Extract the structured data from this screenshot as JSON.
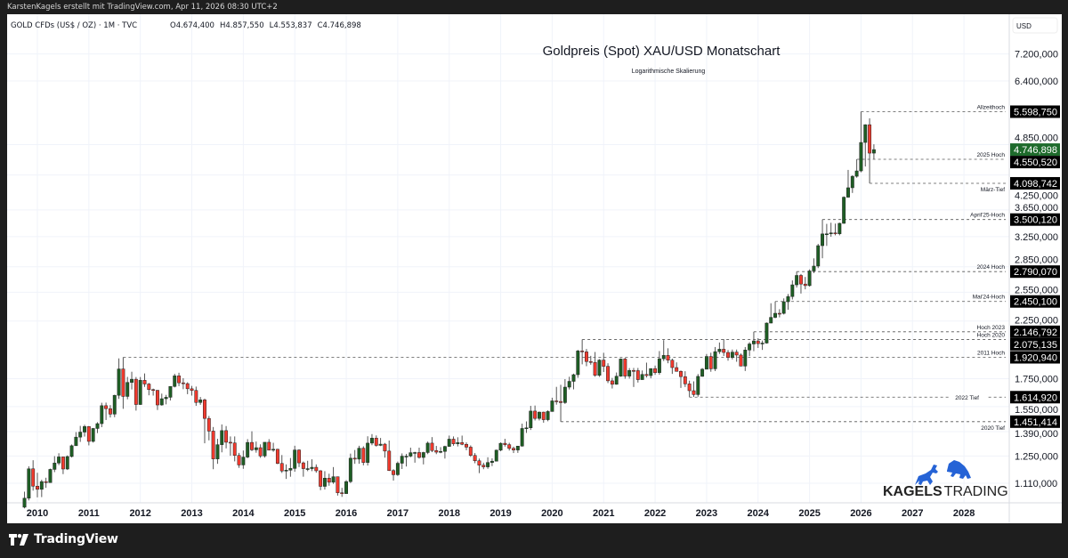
{
  "header": {
    "attribution": "KarstenKagels erstellt mit TradingView.com, Apr 11, 2026 08:30 UTC+2",
    "symbol_line": "GOLD CFDs (US$ / OZ) · 1M · TVC",
    "ohlc_readout": {
      "open": "O4.674,400",
      "high": "H4.857,550",
      "low": "L4.553,837",
      "close": "C4.746,898"
    }
  },
  "footer": {
    "brand": "TradingView",
    "icon": "tradingview-logo-icon"
  },
  "watermark": {
    "text_bold": "KAGELS",
    "text_light": "TRADING",
    "icons": [
      "bull-icon",
      "bear-icon"
    ],
    "color": "#2563d6"
  },
  "colors": {
    "up": "#1e5e24",
    "down": "#f23a2e",
    "last_price_badge": "#1e6b2c",
    "level_badge": "#000000"
  },
  "chart_data": {
    "type": "candlestick",
    "title": "Goldpreis (Spot) XAU/USD Monatschart",
    "subtitle": "Logarithmische Skalierung",
    "y_unit": "USD",
    "y_scale": "log",
    "grid": true,
    "interval": "1M",
    "x_ticks": [
      "2010",
      "2011",
      "2012",
      "2013",
      "2014",
      "2015",
      "2016",
      "2017",
      "2018",
      "2019",
      "2020",
      "2021",
      "2022",
      "2023",
      "2024",
      "2025",
      "2026",
      "2027",
      "2028"
    ],
    "y_ticks": [
      7200,
      6400,
      4850,
      4250,
      3650,
      3250,
      2850,
      2550,
      2250,
      1750,
      1550,
      1390,
      1250,
      1110
    ],
    "candles_start": "2009-10",
    "ohlc": [
      [
        1000,
        1070,
        995,
        1040
      ],
      [
        1040,
        1195,
        1030,
        1182
      ],
      [
        1182,
        1227,
        1075,
        1096
      ],
      [
        1096,
        1162,
        1044,
        1081
      ],
      [
        1081,
        1127,
        1045,
        1118
      ],
      [
        1118,
        1137,
        1088,
        1113
      ],
      [
        1113,
        1183,
        1114,
        1179
      ],
      [
        1179,
        1249,
        1165,
        1212
      ],
      [
        1212,
        1265,
        1201,
        1245
      ],
      [
        1245,
        1246,
        1155,
        1181
      ],
      [
        1181,
        1253,
        1176,
        1247
      ],
      [
        1247,
        1314,
        1242,
        1307
      ],
      [
        1307,
        1387,
        1315,
        1357
      ],
      [
        1357,
        1425,
        1329,
        1387
      ],
      [
        1387,
        1432,
        1360,
        1421
      ],
      [
        1421,
        1424,
        1309,
        1332
      ],
      [
        1332,
        1412,
        1325,
        1409
      ],
      [
        1409,
        1448,
        1381,
        1439
      ],
      [
        1439,
        1576,
        1417,
        1556
      ],
      [
        1556,
        1577,
        1462,
        1536
      ],
      [
        1536,
        1560,
        1478,
        1500
      ],
      [
        1500,
        1632,
        1480,
        1628
      ],
      [
        1628,
        1912,
        1603,
        1826
      ],
      [
        1826,
        1920.94,
        1535,
        1620
      ],
      [
        1620,
        1764,
        1600,
        1722
      ],
      [
        1722,
        1804,
        1670,
        1746
      ],
      [
        1746,
        1763,
        1523,
        1564
      ],
      [
        1564,
        1763,
        1562,
        1738
      ],
      [
        1738,
        1791,
        1689,
        1710
      ],
      [
        1710,
        1718,
        1628,
        1669
      ],
      [
        1669,
        1676,
        1626,
        1664
      ],
      [
        1664,
        1666,
        1527,
        1561
      ],
      [
        1561,
        1640,
        1556,
        1604
      ],
      [
        1604,
        1631,
        1565,
        1614
      ],
      [
        1614,
        1691,
        1592,
        1692
      ],
      [
        1692,
        1788,
        1685,
        1772
      ],
      [
        1772,
        1796,
        1694,
        1719
      ],
      [
        1719,
        1754,
        1672,
        1713
      ],
      [
        1713,
        1723,
        1636,
        1675
      ],
      [
        1675,
        1696,
        1626,
        1663
      ],
      [
        1663,
        1691,
        1555,
        1578
      ],
      [
        1578,
        1616,
        1562,
        1596
      ],
      [
        1596,
        1605,
        1321,
        1472
      ],
      [
        1472,
        1488,
        1338,
        1393
      ],
      [
        1393,
        1418,
        1180,
        1234
      ],
      [
        1234,
        1347,
        1208,
        1313
      ],
      [
        1313,
        1434,
        1270,
        1396
      ],
      [
        1396,
        1424,
        1292,
        1327
      ],
      [
        1327,
        1361,
        1251,
        1323
      ],
      [
        1323,
        1361,
        1221,
        1253
      ],
      [
        1253,
        1267,
        1187,
        1202
      ],
      [
        1202,
        1280,
        1182,
        1244
      ],
      [
        1244,
        1345,
        1238,
        1326
      ],
      [
        1326,
        1392,
        1277,
        1284
      ],
      [
        1284,
        1331,
        1268,
        1296
      ],
      [
        1296,
        1315,
        1240,
        1250
      ],
      [
        1250,
        1325,
        1241,
        1327
      ],
      [
        1327,
        1345,
        1281,
        1282
      ],
      [
        1282,
        1324,
        1273,
        1287
      ],
      [
        1287,
        1290,
        1206,
        1210
      ],
      [
        1210,
        1255,
        1161,
        1171
      ],
      [
        1171,
        1205,
        1131,
        1175
      ],
      [
        1175,
        1239,
        1142,
        1184
      ],
      [
        1184,
        1307,
        1167,
        1283
      ],
      [
        1283,
        1287,
        1191,
        1213
      ],
      [
        1213,
        1220,
        1142,
        1183
      ],
      [
        1183,
        1224,
        1170,
        1183
      ],
      [
        1183,
        1232,
        1170,
        1190
      ],
      [
        1190,
        1205,
        1162,
        1172
      ],
      [
        1172,
        1175,
        1077,
        1095
      ],
      [
        1095,
        1170,
        1080,
        1135
      ],
      [
        1135,
        1157,
        1098,
        1115
      ],
      [
        1115,
        1191,
        1107,
        1142
      ],
      [
        1142,
        1142,
        1052,
        1065
      ],
      [
        1065,
        1088,
        1046,
        1061
      ],
      [
        1061,
        1125,
        1061,
        1118
      ],
      [
        1118,
        1263,
        1111,
        1238
      ],
      [
        1238,
        1283,
        1208,
        1233
      ],
      [
        1233,
        1307,
        1208,
        1293
      ],
      [
        1293,
        1304,
        1200,
        1215
      ],
      [
        1215,
        1362,
        1199,
        1322
      ],
      [
        1322,
        1375,
        1310,
        1351
      ],
      [
        1351,
        1367,
        1302,
        1309
      ],
      [
        1309,
        1352,
        1305,
        1316
      ],
      [
        1316,
        1323,
        1241,
        1277
      ],
      [
        1277,
        1337,
        1171,
        1173
      ],
      [
        1173,
        1180,
        1123,
        1152
      ],
      [
        1152,
        1220,
        1146,
        1211
      ],
      [
        1211,
        1264,
        1181,
        1249
      ],
      [
        1249,
        1261,
        1194,
        1249
      ],
      [
        1249,
        1296,
        1243,
        1268
      ],
      [
        1268,
        1273,
        1214,
        1269
      ],
      [
        1269,
        1296,
        1236,
        1242
      ],
      [
        1242,
        1273,
        1205,
        1269
      ],
      [
        1269,
        1331,
        1260,
        1322
      ],
      [
        1322,
        1357,
        1271,
        1280
      ],
      [
        1280,
        1306,
        1260,
        1271
      ],
      [
        1271,
        1299,
        1265,
        1275
      ],
      [
        1275,
        1307,
        1236,
        1303
      ],
      [
        1303,
        1366,
        1302,
        1345
      ],
      [
        1345,
        1361,
        1307,
        1318
      ],
      [
        1318,
        1356,
        1303,
        1325
      ],
      [
        1325,
        1366,
        1310,
        1315
      ],
      [
        1315,
        1326,
        1282,
        1299
      ],
      [
        1299,
        1309,
        1245,
        1253
      ],
      [
        1253,
        1266,
        1211,
        1224
      ],
      [
        1224,
        1236,
        1160,
        1201
      ],
      [
        1201,
        1214,
        1180,
        1192
      ],
      [
        1192,
        1243,
        1182,
        1215
      ],
      [
        1215,
        1237,
        1196,
        1222
      ],
      [
        1222,
        1285,
        1221,
        1282
      ],
      [
        1282,
        1326,
        1276,
        1321
      ],
      [
        1321,
        1347,
        1302,
        1313
      ],
      [
        1313,
        1324,
        1280,
        1292
      ],
      [
        1292,
        1302,
        1266,
        1283
      ],
      [
        1283,
        1306,
        1267,
        1305
      ],
      [
        1305,
        1439,
        1302,
        1409
      ],
      [
        1409,
        1453,
        1382,
        1413
      ],
      [
        1413,
        1555,
        1400,
        1520
      ],
      [
        1520,
        1557,
        1459,
        1472
      ],
      [
        1472,
        1517,
        1459,
        1513
      ],
      [
        1513,
        1516,
        1445,
        1464
      ],
      [
        1464,
        1525,
        1454,
        1517
      ],
      [
        1517,
        1611,
        1517,
        1589
      ],
      [
        1589,
        1689,
        1563,
        1585
      ],
      [
        1585,
        1704,
        1451.414,
        1577
      ],
      [
        1577,
        1747,
        1568,
        1687
      ],
      [
        1687,
        1765,
        1670,
        1730
      ],
      [
        1730,
        1789,
        1671,
        1781
      ],
      [
        1781,
        1984,
        1757,
        1975
      ],
      [
        1975,
        2075.135,
        1863,
        1967
      ],
      [
        1967,
        1992,
        1848,
        1886
      ],
      [
        1886,
        1933,
        1860,
        1879
      ],
      [
        1879,
        1966,
        1765,
        1776
      ],
      [
        1776,
        1906,
        1764,
        1898
      ],
      [
        1898,
        1959,
        1802,
        1847
      ],
      [
        1847,
        1872,
        1717,
        1734
      ],
      [
        1734,
        1756,
        1677,
        1708
      ],
      [
        1708,
        1798,
        1705,
        1769
      ],
      [
        1769,
        1912,
        1765,
        1907
      ],
      [
        1907,
        1917,
        1750,
        1770
      ],
      [
        1770,
        1833,
        1751,
        1814
      ],
      [
        1814,
        1834,
        1688,
        1813
      ],
      [
        1813,
        1834,
        1721,
        1743
      ],
      [
        1743,
        1814,
        1746,
        1783
      ],
      [
        1783,
        1877,
        1759,
        1774
      ],
      [
        1774,
        1831,
        1753,
        1829
      ],
      [
        1829,
        1853,
        1780,
        1797
      ],
      [
        1797,
        1974,
        1781,
        1909
      ],
      [
        1909,
        2070,
        1890,
        1937
      ],
      [
        1937,
        1998,
        1872,
        1897
      ],
      [
        1897,
        1910,
        1787,
        1837
      ],
      [
        1837,
        1879,
        1805,
        1807
      ],
      [
        1807,
        1814,
        1681,
        1766
      ],
      [
        1766,
        1808,
        1688,
        1711
      ],
      [
        1711,
        1735,
        1614.92,
        1661
      ],
      [
        1661,
        1730,
        1617,
        1633
      ],
      [
        1633,
        1786,
        1618,
        1768
      ],
      [
        1768,
        1833,
        1765,
        1824
      ],
      [
        1824,
        1949,
        1823,
        1928
      ],
      [
        1928,
        1960,
        1804,
        1827
      ],
      [
        1827,
        2009,
        1809,
        1969
      ],
      [
        1969,
        2049,
        1949,
        1990
      ],
      [
        1990,
        2079,
        1932,
        1962
      ],
      [
        1962,
        1983,
        1893,
        1919
      ],
      [
        1919,
        1987,
        1903,
        1965
      ],
      [
        1965,
        1987,
        1884,
        1940
      ],
      [
        1940,
        1953,
        1847,
        1849
      ],
      [
        1849,
        2009,
        1810,
        1983
      ],
      [
        1983,
        2052,
        1931,
        2036
      ],
      [
        2036,
        2146.792,
        1973,
        2063
      ],
      [
        2063,
        2088,
        2001,
        2039
      ],
      [
        2039,
        2066,
        1984,
        2044
      ],
      [
        2044,
        2236,
        2039,
        2230
      ],
      [
        2230,
        2431,
        2228,
        2286
      ],
      [
        2286,
        2450.1,
        2277,
        2327
      ],
      [
        2327,
        2369,
        2286,
        2326
      ],
      [
        2326,
        2483,
        2315,
        2447
      ],
      [
        2447,
        2531,
        2364,
        2503
      ],
      [
        2503,
        2685,
        2471,
        2634
      ],
      [
        2634,
        2790.07,
        2603,
        2744
      ],
      [
        2744,
        2761,
        2536,
        2643
      ],
      [
        2643,
        2726,
        2583,
        2625
      ],
      [
        2625,
        2817,
        2614,
        2798
      ],
      [
        2798,
        2956,
        2772,
        2858
      ],
      [
        2858,
        3148,
        2833,
        3124
      ],
      [
        3124,
        3500.12,
        2957,
        3288
      ],
      [
        3288,
        3435,
        3121,
        3289
      ],
      [
        3289,
        3452,
        3247,
        3303
      ],
      [
        3303,
        3439,
        3268,
        3290
      ],
      [
        3290,
        3453,
        3268,
        3443
      ],
      [
        3443,
        3872,
        3436,
        3858
      ],
      [
        3858,
        4345,
        3850,
        4020
      ],
      [
        4020,
        4245,
        3930,
        4226
      ],
      [
        4226,
        4550.52,
        4200,
        4326
      ],
      [
        4326,
        5598.75,
        4300,
        4897
      ],
      [
        4897,
        5300,
        4410,
        5290
      ],
      [
        5290,
        5440,
        4098.742,
        4674.4
      ],
      [
        4674.4,
        4857.55,
        4553.837,
        4746.898
      ]
    ],
    "last_price": {
      "value": 4746.898,
      "label": "4.746,898"
    },
    "levels": [
      {
        "label": "Allzeithoch",
        "price": 5598.75,
        "value_label": "5.598,750",
        "start": "2026-01"
      },
      {
        "label": "2025 Hoch",
        "price": 4550.52,
        "value_label": "4.550,520",
        "start": "2025-12"
      },
      {
        "label": "März-Tief",
        "price": 4098.742,
        "value_label": "4.098,742",
        "start": "2026-03"
      },
      {
        "label": "April'25-Hoch",
        "price": 3500.12,
        "value_label": "3.500,120",
        "start": "2025-04"
      },
      {
        "label": "2024 Hoch",
        "price": 2790.07,
        "value_label": "2.790,070",
        "start": "2024-10"
      },
      {
        "label": "Mai'24-Hoch",
        "price": 2450.1,
        "value_label": "2.450,100",
        "start": "2024-05"
      },
      {
        "label": "Hoch 2023",
        "price": 2146.792,
        "value_label": "2.146,792",
        "start": "2023-12"
      },
      {
        "label": "Hoch 2020",
        "price": 2075.135,
        "value_label": "2.075,135",
        "start": "2020-08"
      },
      {
        "label": "2011 Hoch",
        "price": 1920.94,
        "value_label": "1.920,940",
        "start": "2011-09"
      },
      {
        "label": "2022 Tief",
        "price": 1614.92,
        "value_label": "1.614,920",
        "start": "2022-09"
      },
      {
        "label": "2020 Tief",
        "price": 1451.414,
        "value_label": "1.451,414",
        "start": "2020-03"
      }
    ]
  }
}
